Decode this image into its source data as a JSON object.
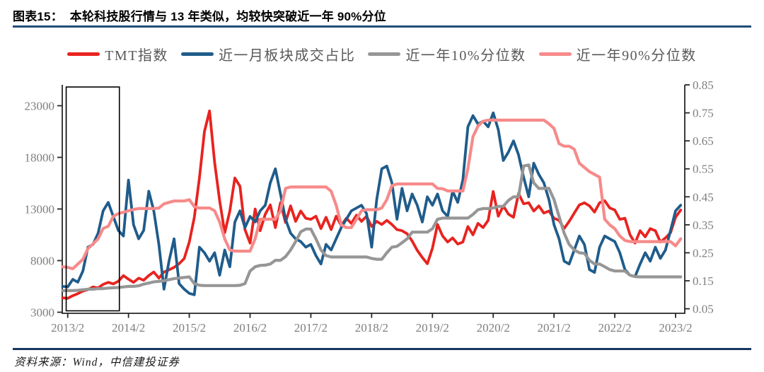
{
  "header": {
    "title": "图表15：  本轮科技股行情与 13 年类似，均较快突破近一年 90%分位"
  },
  "footer": {
    "source": "资料来源：Wind，中信建投证券"
  },
  "colors": {
    "title_rule": "#1f4e79",
    "footer_rule": "#17375e",
    "axis_line": "#262626",
    "tick_label": "#7f7f7f",
    "legend_label": "#595959",
    "annotation_box": "#000000"
  },
  "chart_data": {
    "type": "line",
    "title": "本轮科技股行情与 13 年类似，均较快突破近一年 90%分位",
    "grid": false,
    "legend_position": "top",
    "x_tick_labels": [
      "2013/2",
      "2014/2",
      "2015/2",
      "2016/2",
      "2017/2",
      "2018/2",
      "2019/2",
      "2020/2",
      "2021/2",
      "2022/2",
      "2023/2"
    ],
    "x_start": "2013/1",
    "x_end": "2023/3",
    "x_unit": "month",
    "left_axis": {
      "ticks": [
        3000,
        8000,
        13000,
        18000,
        23000
      ],
      "min": 3000,
      "max": 23000
    },
    "right_axis": {
      "ticks": [
        0.05,
        0.15,
        0.25,
        0.35,
        0.45,
        0.55,
        0.65,
        0.75,
        0.85
      ],
      "min": 0.05,
      "max": 0.85
    },
    "annotation_box": {
      "label": "2013-period highlight",
      "x_month_range": [
        0.7,
        11.2
      ]
    },
    "series": [
      {
        "name": "TMT指数",
        "axis": "left",
        "color": "#e8231f",
        "width": 3.8,
        "values": [
          4400,
          4350,
          4600,
          4800,
          5050,
          5200,
          5450,
          5350,
          5700,
          5900,
          5750,
          6000,
          6550,
          6200,
          5900,
          6300,
          6100,
          6550,
          6900,
          6300,
          6900,
          7100,
          7350,
          7700,
          8200,
          9800,
          12200,
          16000,
          20500,
          22500,
          17500,
          13800,
          10700,
          12800,
          16000,
          15200,
          11000,
          9700,
          13000,
          10900,
          12500,
          13400,
          11200,
          13600,
          11700,
          13300,
          11800,
          12800,
          12100,
          12000,
          12300,
          11100,
          12200,
          11000,
          12300,
          11400,
          12100,
          11600,
          12400,
          11800,
          12300,
          11300,
          11800,
          11500,
          11900,
          11500,
          11000,
          10900,
          10600,
          9900,
          9000,
          8300,
          7700,
          9200,
          11500,
          10400,
          9800,
          10200,
          9600,
          9800,
          11300,
          10500,
          11600,
          11200,
          11900,
          14700,
          12300,
          13300,
          12500,
          12200,
          14500,
          13500,
          13600,
          12800,
          13300,
          12600,
          12800,
          12100,
          11900,
          11100,
          11800,
          12600,
          13400,
          13600,
          13300,
          12700,
          13600,
          13800,
          13100,
          12900,
          12000,
          12100,
          10500,
          9700,
          10900,
          10300,
          11100,
          10900,
          9800,
          10200,
          10700,
          12200,
          12900
        ]
      },
      {
        "name": "近一月板块成交占比",
        "axis": "right",
        "color": "#1f5c8b",
        "width": 3.8,
        "values": [
          0.13,
          0.128,
          0.155,
          0.145,
          0.185,
          0.27,
          0.28,
          0.32,
          0.4,
          0.43,
          0.38,
          0.33,
          0.31,
          0.51,
          0.35,
          0.3,
          0.33,
          0.47,
          0.4,
          0.28,
          0.12,
          0.22,
          0.3,
          0.14,
          0.12,
          0.105,
          0.1,
          0.27,
          0.25,
          0.22,
          0.25,
          0.17,
          0.26,
          0.2,
          0.36,
          0.4,
          0.34,
          0.38,
          0.36,
          0.4,
          0.42,
          0.5,
          0.55,
          0.46,
          0.37,
          0.32,
          0.3,
          0.29,
          0.27,
          0.28,
          0.24,
          0.21,
          0.28,
          0.26,
          0.3,
          0.34,
          0.37,
          0.4,
          0.41,
          0.42,
          0.39,
          0.27,
          0.44,
          0.55,
          0.56,
          0.5,
          0.37,
          0.48,
          0.4,
          0.46,
          0.42,
          0.36,
          0.45,
          0.42,
          0.46,
          0.4,
          0.38,
          0.47,
          0.43,
          0.51,
          0.7,
          0.74,
          0.71,
          0.72,
          0.7,
          0.75,
          0.69,
          0.58,
          0.61,
          0.65,
          0.6,
          0.52,
          0.45,
          0.57,
          0.53,
          0.5,
          0.44,
          0.35,
          0.3,
          0.22,
          0.21,
          0.26,
          0.31,
          0.28,
          0.19,
          0.18,
          0.27,
          0.31,
          0.3,
          0.29,
          0.25,
          0.19,
          0.17,
          0.165,
          0.21,
          0.25,
          0.22,
          0.27,
          0.23,
          0.26,
          0.33,
          0.4,
          0.42
        ]
      },
      {
        "name": "近一年10%分位数",
        "axis": "right",
        "color": "#969696",
        "width": 4.2,
        "values": [
          0.115,
          0.115,
          0.115,
          0.116,
          0.118,
          0.12,
          0.12,
          0.122,
          0.122,
          0.124,
          0.125,
          0.126,
          0.128,
          0.13,
          0.13,
          0.132,
          0.138,
          0.142,
          0.146,
          0.148,
          0.15,
          0.154,
          0.158,
          0.16,
          0.162,
          0.164,
          0.14,
          0.134,
          0.133,
          0.133,
          0.133,
          0.133,
          0.133,
          0.133,
          0.133,
          0.134,
          0.14,
          0.185,
          0.2,
          0.205,
          0.206,
          0.21,
          0.223,
          0.223,
          0.236,
          0.26,
          0.29,
          0.325,
          0.335,
          0.335,
          0.3,
          0.26,
          0.24,
          0.235,
          0.235,
          0.235,
          0.235,
          0.235,
          0.235,
          0.235,
          0.235,
          0.23,
          0.227,
          0.227,
          0.25,
          0.27,
          0.273,
          0.286,
          0.3,
          0.324,
          0.324,
          0.324,
          0.324,
          0.336,
          0.37,
          0.374,
          0.374,
          0.374,
          0.374,
          0.374,
          0.374,
          0.387,
          0.404,
          0.408,
          0.408,
          0.41,
          0.416,
          0.416,
          0.437,
          0.45,
          0.45,
          0.56,
          0.564,
          0.5,
          0.48,
          0.48,
          0.48,
          0.44,
          0.38,
          0.32,
          0.28,
          0.26,
          0.25,
          0.248,
          0.223,
          0.21,
          0.21,
          0.2,
          0.19,
          0.185,
          0.185,
          0.185,
          0.17,
          0.165,
          0.164,
          0.164,
          0.164,
          0.164,
          0.164,
          0.164,
          0.164,
          0.164,
          0.164
        ]
      },
      {
        "name": "近一年90%分位数",
        "axis": "right",
        "color": "#f78a8a",
        "width": 4.2,
        "values": [
          0.2,
          0.198,
          0.193,
          0.21,
          0.227,
          0.265,
          0.282,
          0.3,
          0.337,
          0.345,
          0.38,
          0.39,
          0.395,
          0.4,
          0.405,
          0.408,
          0.408,
          0.408,
          0.408,
          0.41,
          0.425,
          0.43,
          0.435,
          0.435,
          0.435,
          0.44,
          0.415,
          0.41,
          0.41,
          0.41,
          0.4,
          0.36,
          0.3,
          0.26,
          0.256,
          0.256,
          0.256,
          0.256,
          0.3,
          0.37,
          0.37,
          0.37,
          0.37,
          0.4,
          0.48,
          0.485,
          0.485,
          0.485,
          0.485,
          0.485,
          0.485,
          0.485,
          0.485,
          0.47,
          0.42,
          0.35,
          0.34,
          0.34,
          0.37,
          0.4,
          0.404,
          0.404,
          0.404,
          0.41,
          0.44,
          0.49,
          0.496,
          0.496,
          0.496,
          0.496,
          0.496,
          0.496,
          0.496,
          0.496,
          0.48,
          0.479,
          0.471,
          0.471,
          0.471,
          0.471,
          0.55,
          0.665,
          0.703,
          0.72,
          0.724,
          0.724,
          0.724,
          0.724,
          0.724,
          0.724,
          0.724,
          0.724,
          0.724,
          0.724,
          0.724,
          0.724,
          0.711,
          0.694,
          0.64,
          0.631,
          0.631,
          0.62,
          0.57,
          0.555,
          0.54,
          0.53,
          0.52,
          0.37,
          0.35,
          0.336,
          0.31,
          0.294,
          0.29,
          0.29,
          0.29,
          0.29,
          0.29,
          0.29,
          0.29,
          0.29,
          0.29,
          0.275,
          0.3
        ]
      }
    ]
  }
}
